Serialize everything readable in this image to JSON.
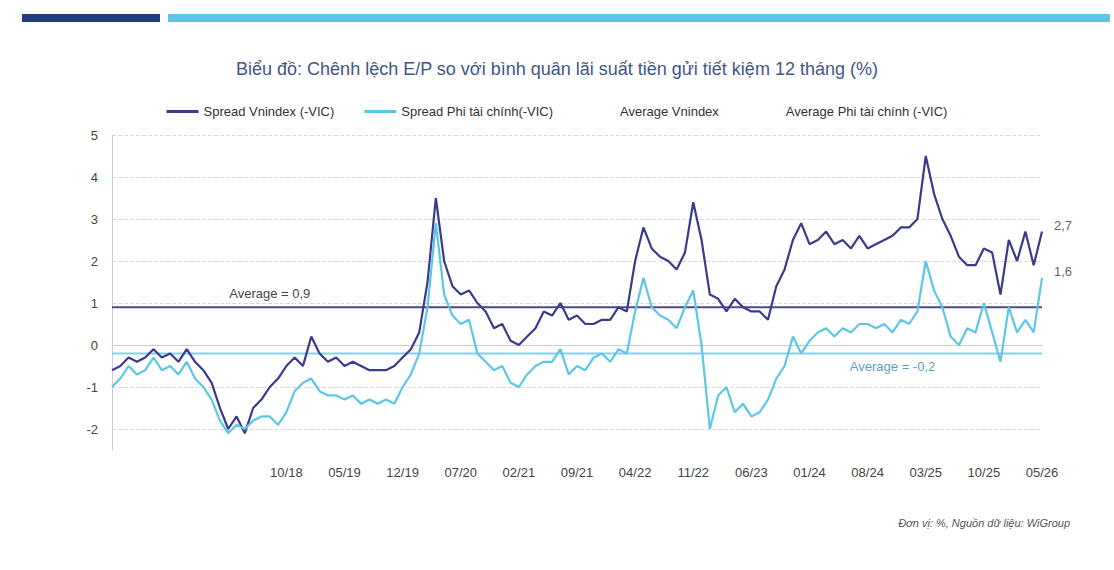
{
  "chart_data": {
    "type": "line",
    "title": "Biểu đồ: Chênh lệch E/P so với bình quân lãi suất tiền gửi tiết kiệm 12 tháng (%)",
    "source": "Đơn vị: %, Nguồn dữ liệu: WiGroup",
    "x": [
      null,
      null,
      null,
      null,
      null,
      null,
      null,
      null,
      null,
      null,
      null,
      null,
      null,
      null,
      null,
      null,
      null,
      null,
      null,
      null,
      null,
      "10/18",
      null,
      null,
      null,
      null,
      null,
      null,
      "05/19",
      null,
      null,
      null,
      null,
      null,
      null,
      "12/19",
      null,
      null,
      null,
      null,
      null,
      null,
      "07/20",
      null,
      null,
      null,
      null,
      null,
      null,
      "02/21",
      null,
      null,
      null,
      null,
      null,
      null,
      "09/21",
      null,
      null,
      null,
      null,
      null,
      null,
      "04/22",
      null,
      null,
      null,
      null,
      null,
      null,
      "11/22",
      null,
      null,
      null,
      null,
      null,
      null,
      "06/23",
      null,
      null,
      null,
      null,
      null,
      null,
      "01/24",
      null,
      null,
      null,
      null,
      null,
      null,
      "08/24",
      null,
      null,
      null,
      null,
      null,
      null,
      "03/25",
      null,
      null,
      null,
      null,
      null,
      null,
      "10/25",
      null,
      null,
      null,
      null,
      null,
      null,
      "05/26"
    ],
    "series": [
      {
        "name": "Spread Vnindex (-VIC)",
        "color": "#3b3a8c",
        "end_label": "2,7",
        "values": [
          -0.6,
          -0.5,
          -0.3,
          -0.4,
          -0.3,
          -0.1,
          -0.3,
          -0.2,
          -0.4,
          -0.1,
          -0.4,
          -0.6,
          -0.9,
          -1.5,
          -2.0,
          -1.7,
          -2.1,
          -1.5,
          -1.3,
          -1.0,
          -0.8,
          -0.5,
          -0.3,
          -0.5,
          0.2,
          -0.2,
          -0.4,
          -0.3,
          -0.5,
          -0.4,
          -0.5,
          -0.6,
          -0.6,
          -0.6,
          -0.5,
          -0.3,
          -0.1,
          0.3,
          1.5,
          3.5,
          2.0,
          1.4,
          1.2,
          1.3,
          1.0,
          0.8,
          0.4,
          0.5,
          0.1,
          0.0,
          0.2,
          0.4,
          0.8,
          0.7,
          1.0,
          0.6,
          0.7,
          0.5,
          0.5,
          0.6,
          0.6,
          0.9,
          0.8,
          2.0,
          2.8,
          2.3,
          2.1,
          2.0,
          1.8,
          2.2,
          3.4,
          2.5,
          1.2,
          1.1,
          0.8,
          1.1,
          0.9,
          0.8,
          0.8,
          0.6,
          1.4,
          1.8,
          2.5,
          2.9,
          2.4,
          2.5,
          2.7,
          2.4,
          2.5,
          2.3,
          2.6,
          2.3,
          2.4,
          2.5,
          2.6,
          2.8,
          2.8,
          3.0,
          4.5,
          3.6,
          3.0,
          2.6,
          2.1,
          1.9,
          1.9,
          2.3,
          2.2,
          1.2,
          2.5,
          2.0,
          2.7,
          1.9,
          2.7
        ]
      },
      {
        "name": "Spread Phi tài chính(-VIC)",
        "color": "#5cc6e6",
        "end_label": "1,6",
        "values": [
          -1.0,
          -0.8,
          -0.5,
          -0.7,
          -0.6,
          -0.3,
          -0.6,
          -0.5,
          -0.7,
          -0.4,
          -0.8,
          -1.0,
          -1.3,
          -1.8,
          -2.1,
          -1.9,
          -2.0,
          -1.8,
          -1.7,
          -1.7,
          -1.9,
          -1.6,
          -1.1,
          -0.9,
          -0.8,
          -1.1,
          -1.2,
          -1.2,
          -1.3,
          -1.2,
          -1.4,
          -1.3,
          -1.4,
          -1.3,
          -1.4,
          -1.0,
          -0.7,
          -0.2,
          0.9,
          2.9,
          1.2,
          0.7,
          0.5,
          0.6,
          -0.2,
          -0.4,
          -0.6,
          -0.5,
          -0.9,
          -1.0,
          -0.7,
          -0.5,
          -0.4,
          -0.4,
          -0.1,
          -0.7,
          -0.5,
          -0.6,
          -0.3,
          -0.2,
          -0.4,
          -0.1,
          -0.2,
          0.8,
          1.6,
          0.9,
          0.7,
          0.6,
          0.4,
          0.9,
          1.3,
          0.0,
          -2.0,
          -1.2,
          -1.0,
          -1.6,
          -1.4,
          -1.7,
          -1.6,
          -1.3,
          -0.8,
          -0.5,
          0.2,
          -0.2,
          0.1,
          0.3,
          0.4,
          0.2,
          0.4,
          0.3,
          0.5,
          0.5,
          0.4,
          0.5,
          0.3,
          0.6,
          0.5,
          0.8,
          2.0,
          1.3,
          0.9,
          0.2,
          0.0,
          0.4,
          0.3,
          1.0,
          0.3,
          -0.4,
          0.9,
          0.3,
          0.6,
          0.3,
          1.6
        ]
      },
      {
        "name": "Average Vnindex",
        "color": "#4a4a8e",
        "line_style": "dotted",
        "value": 0.9,
        "label": "Average = 0,9"
      },
      {
        "name": "Average Phi tài chính (-VIC)",
        "color": "#7fd3ee",
        "line_style": "dotted",
        "value": -0.2,
        "label": "Average = -0,2"
      }
    ],
    "ylim": [
      -2.5,
      5
    ],
    "yticks": [
      -2,
      -1,
      0,
      1,
      2,
      3,
      4,
      5
    ],
    "grid": true,
    "legend": "top"
  }
}
